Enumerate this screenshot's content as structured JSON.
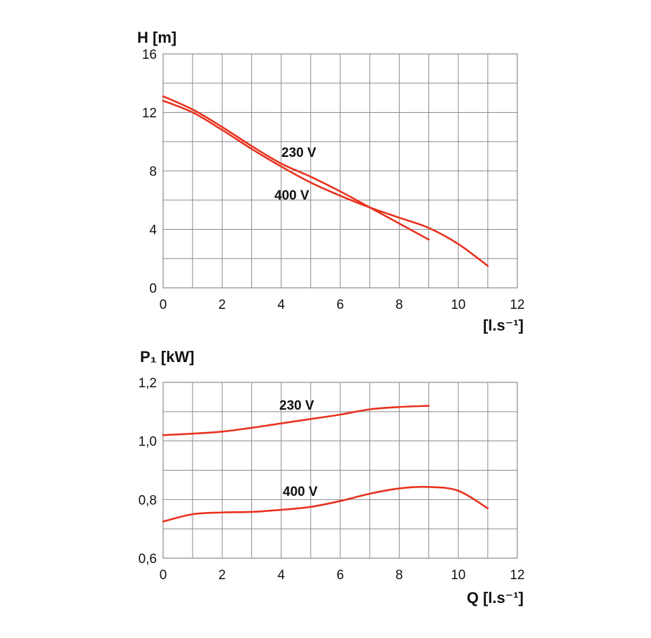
{
  "colors": {
    "curve": "#e8321e",
    "grid": "#8a8a8a",
    "text": "#111111"
  },
  "chart_data": [
    {
      "type": "line",
      "title": "",
      "ylabel": "H [m]",
      "xlabel": "[l.s⁻¹]",
      "xlim": [
        0,
        12
      ],
      "ylim": [
        0,
        16
      ],
      "x_ticks": [
        0,
        2,
        4,
        6,
        8,
        10,
        12
      ],
      "y_ticks": [
        0,
        4,
        8,
        12,
        16
      ],
      "x_tick_labels": [
        "0",
        "2",
        "4",
        "6",
        "8",
        "10",
        "12"
      ],
      "y_tick_labels": [
        "0",
        "4",
        "8",
        "12",
        "16"
      ],
      "grid": true,
      "series": [
        {
          "name": "230 V",
          "x": [
            0,
            1,
            2,
            3,
            4,
            5,
            6,
            7,
            8,
            9
          ],
          "y": [
            13.1,
            12.2,
            11.0,
            9.7,
            8.5,
            7.6,
            6.6,
            5.5,
            4.4,
            3.3
          ]
        },
        {
          "name": "400 V",
          "x": [
            0,
            1,
            2,
            3,
            4,
            5,
            6,
            7,
            8,
            9,
            10,
            11
          ],
          "y": [
            12.8,
            12.0,
            10.8,
            9.5,
            8.3,
            7.2,
            6.3,
            5.5,
            4.8,
            4.1,
            3.0,
            1.5
          ]
        }
      ]
    },
    {
      "type": "line",
      "title": "",
      "ylabel": "P₁ [kW]",
      "xlabel": "Q [l.s⁻¹]",
      "xlim": [
        0,
        12
      ],
      "ylim": [
        0.6,
        1.2
      ],
      "x_ticks": [
        0,
        2,
        4,
        6,
        8,
        10,
        12
      ],
      "y_ticks": [
        0.6,
        0.8,
        1.0,
        1.2
      ],
      "x_tick_labels": [
        "0",
        "2",
        "4",
        "6",
        "8",
        "10",
        "12"
      ],
      "y_tick_labels": [
        "0,6",
        "0,8",
        "1,0",
        "1,2"
      ],
      "grid": true,
      "series": [
        {
          "name": "230 V",
          "x": [
            0,
            1,
            2,
            3,
            4,
            5,
            6,
            7,
            8,
            9
          ],
          "y": [
            1.02,
            1.025,
            1.032,
            1.045,
            1.06,
            1.075,
            1.09,
            1.108,
            1.116,
            1.12
          ]
        },
        {
          "name": "400 V",
          "x": [
            0,
            1,
            2,
            3,
            4,
            5,
            6,
            7,
            8,
            9,
            10,
            11
          ],
          "y": [
            0.725,
            0.75,
            0.756,
            0.758,
            0.765,
            0.775,
            0.795,
            0.82,
            0.838,
            0.843,
            0.83,
            0.77
          ]
        }
      ]
    }
  ]
}
